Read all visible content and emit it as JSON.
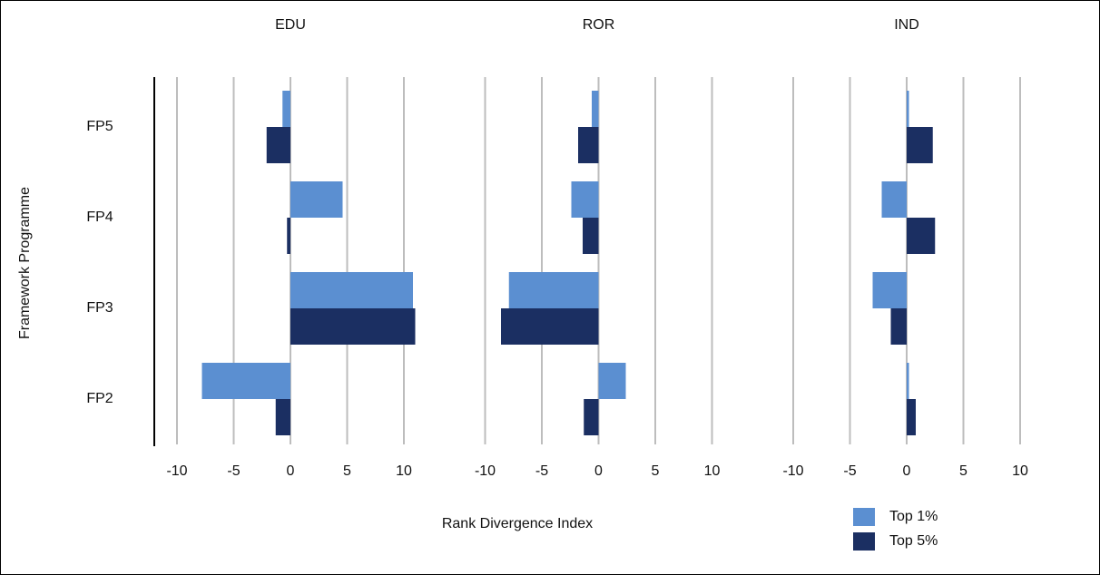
{
  "chart_data": [
    {
      "type": "bar",
      "orientation": "horizontal",
      "title": "EDU",
      "y_label": "Framework Programme",
      "x_label": "Rank Divergence Index",
      "categories": [
        "FP5",
        "FP4",
        "FP3",
        "FP2"
      ],
      "series": [
        {
          "name": "Top 1%",
          "color": "#5b8fd1",
          "values": [
            -0.7,
            4.6,
            10.8,
            -7.8
          ]
        },
        {
          "name": "Top 5%",
          "color": "#1b2f62",
          "values": [
            -2.1,
            -0.3,
            11.0,
            -1.3
          ]
        }
      ],
      "xlim": [
        -12,
        12
      ],
      "xticks": [
        -10,
        -5,
        0,
        5,
        10
      ],
      "grid": true
    },
    {
      "type": "bar",
      "orientation": "horizontal",
      "title": "ROR",
      "categories": [
        "FP5",
        "FP4",
        "FP3",
        "FP2"
      ],
      "series": [
        {
          "name": "Top 1%",
          "color": "#5b8fd1",
          "values": [
            -0.6,
            -2.4,
            -7.9,
            2.4
          ]
        },
        {
          "name": "Top 5%",
          "color": "#1b2f62",
          "values": [
            -1.8,
            -1.4,
            -8.6,
            -1.3
          ]
        }
      ],
      "xlim": [
        -12,
        12
      ],
      "xticks": [
        -10,
        -5,
        0,
        5,
        10
      ],
      "grid": true
    },
    {
      "type": "bar",
      "orientation": "horizontal",
      "title": "IND",
      "categories": [
        "FP5",
        "FP4",
        "FP3",
        "FP2"
      ],
      "series": [
        {
          "name": "Top 1%",
          "color": "#5b8fd1",
          "values": [
            0.2,
            -2.2,
            -3.0,
            0.2
          ]
        },
        {
          "name": "Top 5%",
          "color": "#1b2f62",
          "values": [
            2.3,
            2.5,
            -1.4,
            0.8
          ]
        }
      ],
      "xlim": [
        -12,
        12
      ],
      "xticks": [
        -10,
        -5,
        0,
        5,
        10
      ],
      "grid": true
    }
  ]
}
